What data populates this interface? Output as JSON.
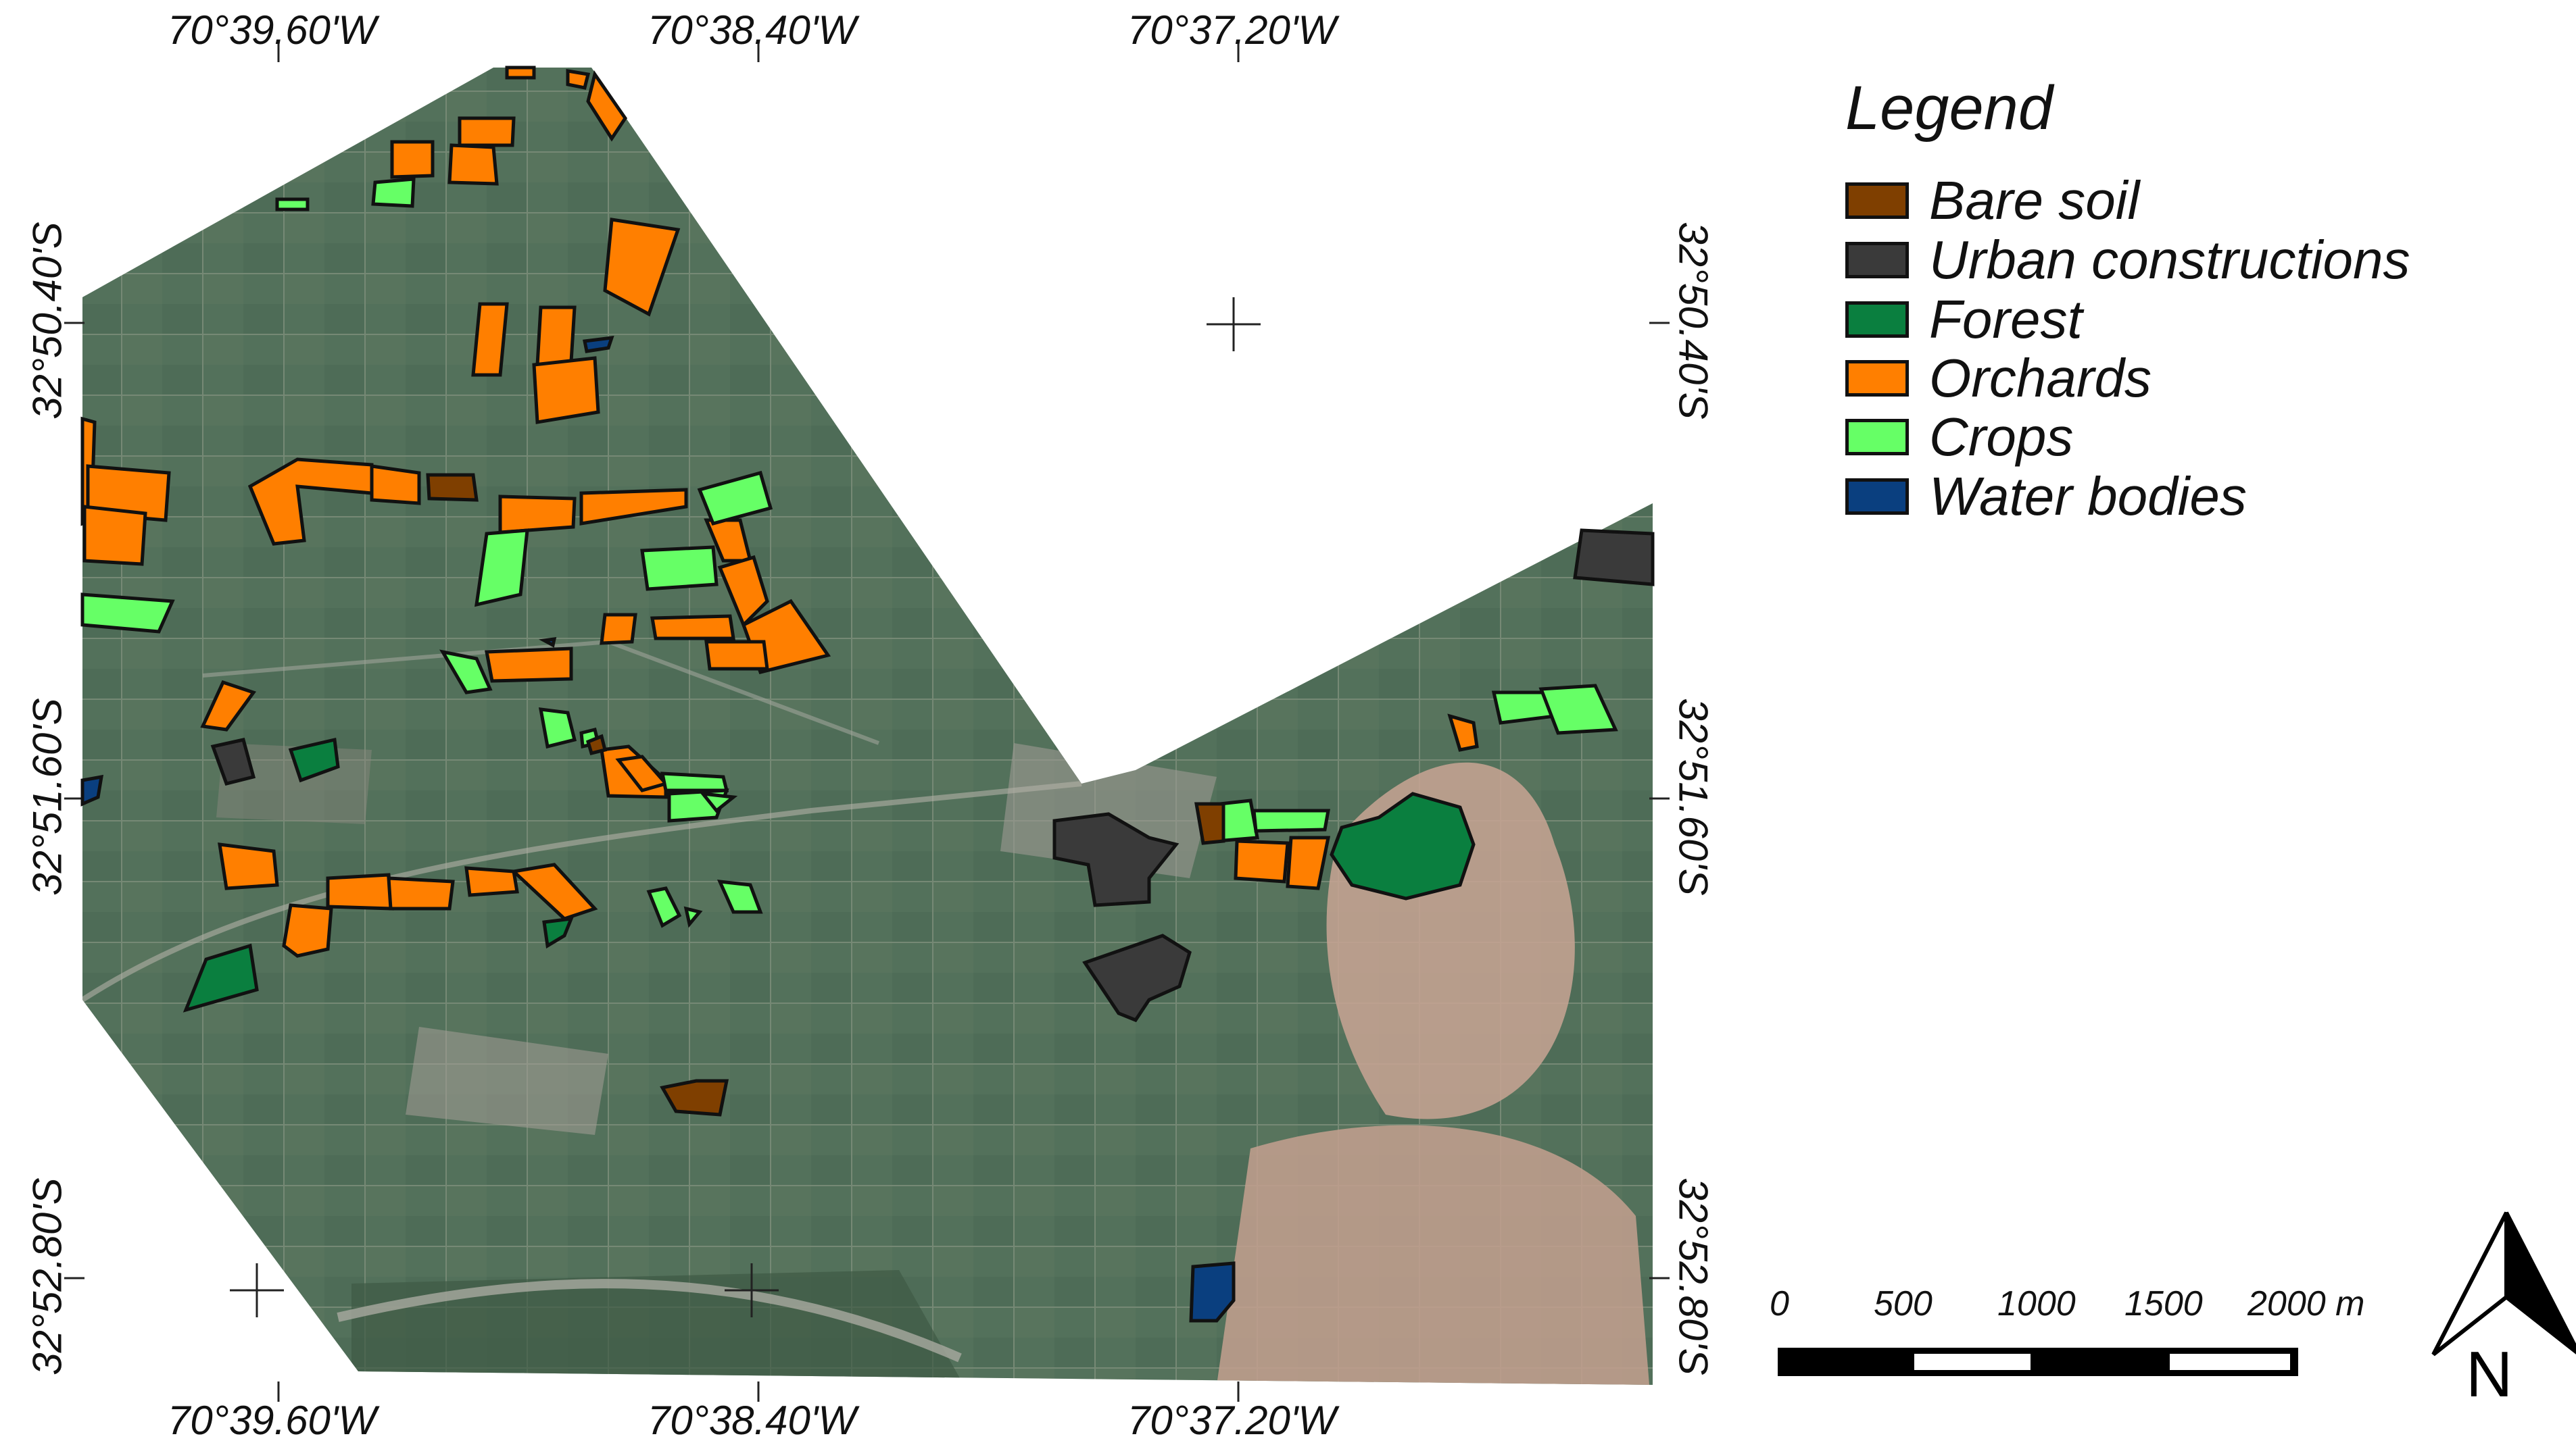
{
  "map": {
    "top_labels": [
      "70°39.60'W",
      "70°38.40'W",
      "70°37.20'W"
    ],
    "bottom_labels": [
      "70°39.60'W",
      "70°38.40'W",
      "70°37.20'W"
    ],
    "left_labels": [
      "32°50.40'S",
      "32°51.60'S",
      "32°52.80'S"
    ],
    "right_labels": [
      "32°50.40'S",
      "32°51.60'S",
      "32°52.80'S"
    ]
  },
  "legend": {
    "title": "Legend",
    "items": [
      {
        "label": "Bare soil",
        "color": "#7f3f00"
      },
      {
        "label": "Urban constructions",
        "color": "#3a3a3a"
      },
      {
        "label": "Forest",
        "color": "#0a7f3f"
      },
      {
        "label": "Orchards",
        "color": "#ff7f00"
      },
      {
        "label": "Crops",
        "color": "#66ff66"
      },
      {
        "label": "Water bodies",
        "color": "#0a3f7f"
      }
    ]
  },
  "scale_bar": {
    "ticks": [
      "0",
      "500",
      "1000",
      "1500",
      "2000 m"
    ]
  },
  "north_arrow": {
    "letter": "N",
    "icon": "north-arrow-icon"
  }
}
